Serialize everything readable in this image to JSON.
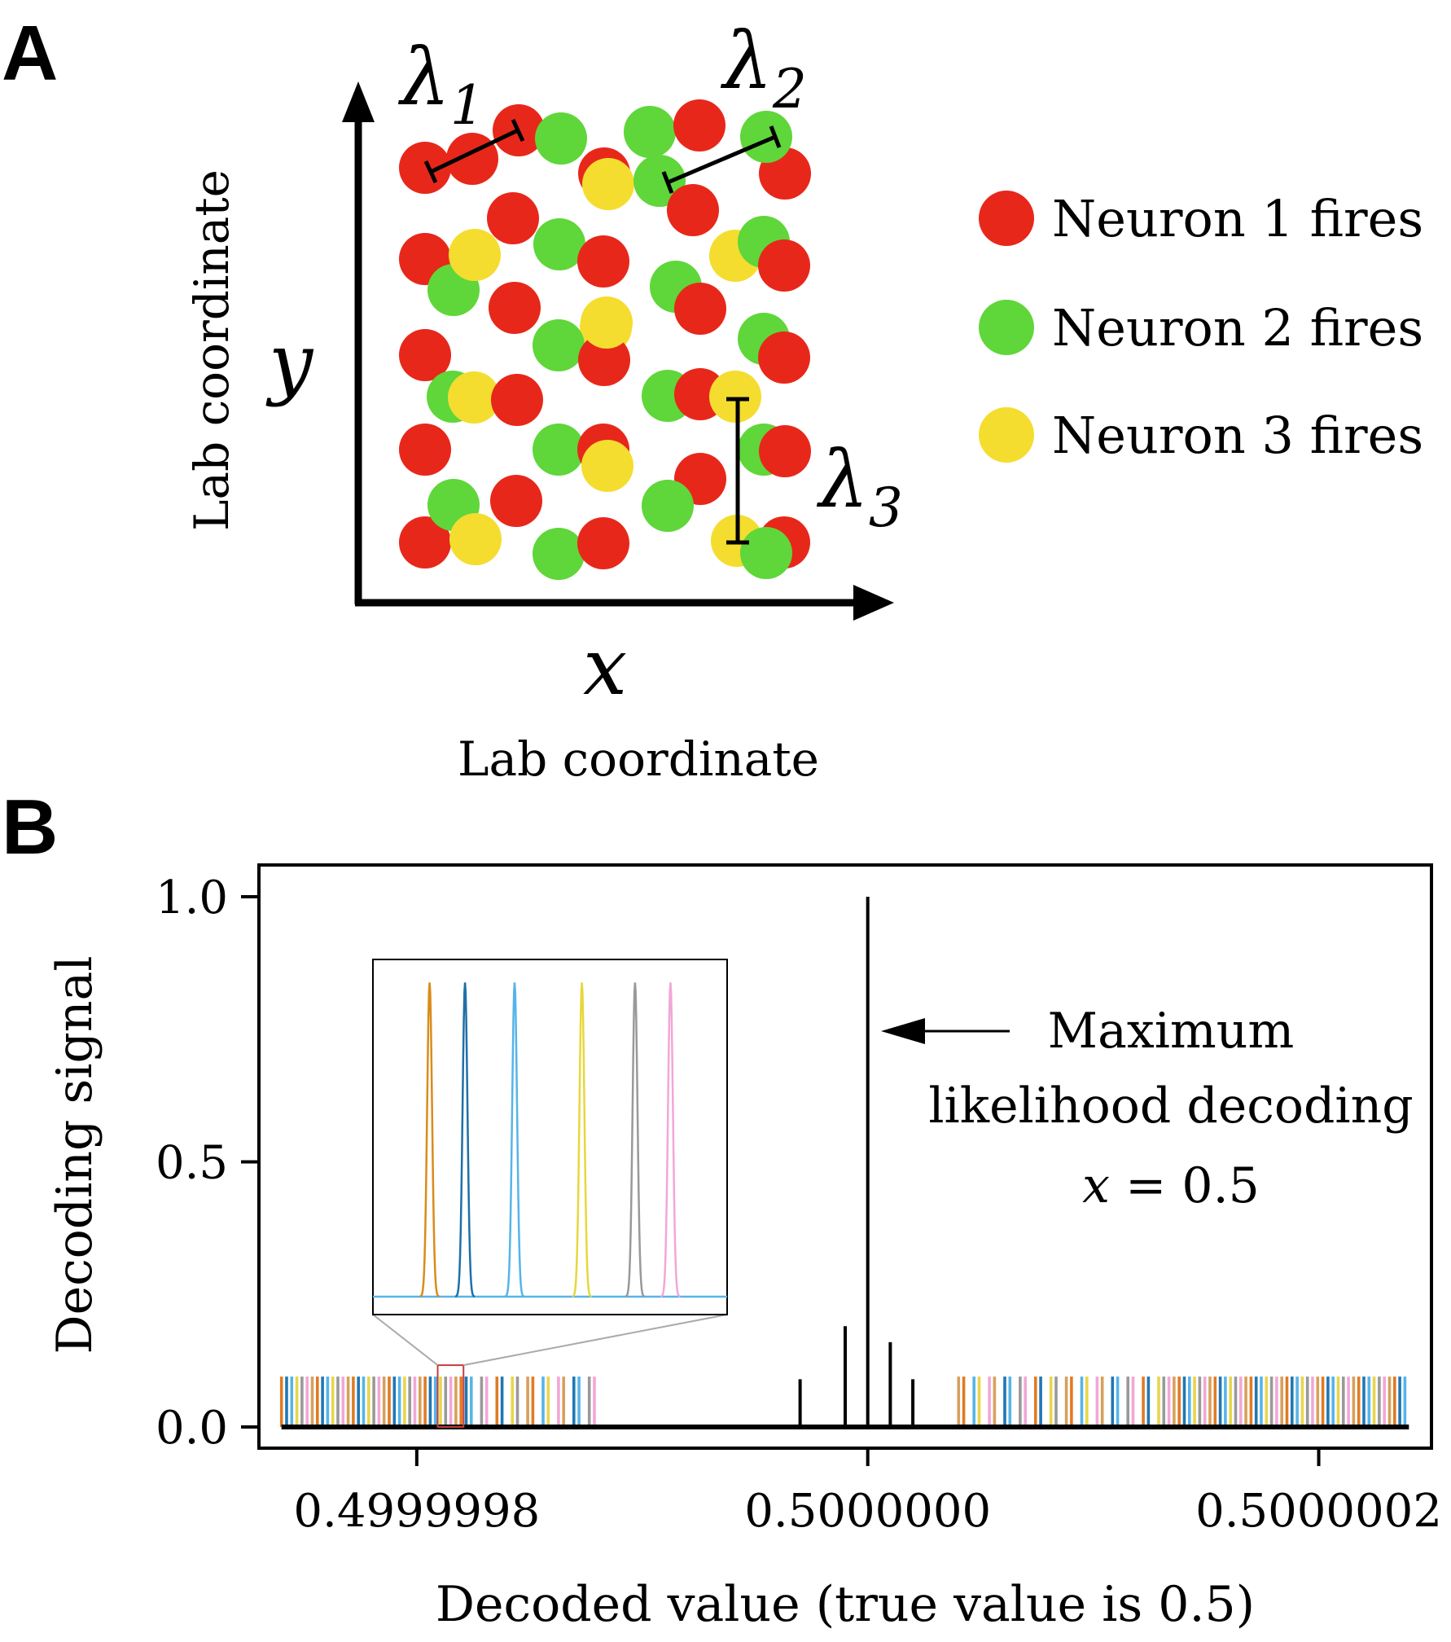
{
  "panel_a": {
    "label": "A",
    "x_axis_symbol": "x",
    "y_axis_symbol": "y",
    "x_axis_label": "Lab coordinate",
    "y_axis_label": "Lab coordinate",
    "lambda_symbol": "λ",
    "lambda_subscripts": [
      "1",
      "2",
      "3"
    ],
    "legend": [
      {
        "label": "Neuron 1 fires",
        "color": "#e8271b"
      },
      {
        "label": "Neuron 2 fires",
        "color": "#5fd63a"
      },
      {
        "label": "Neuron 3 fires",
        "color": "#f4dd2f"
      }
    ]
  },
  "panel_b": {
    "label": "B",
    "annotation_lines": [
      "Maximum",
      "likelihood decoding"
    ],
    "annotation_eq_var": "x",
    "annotation_eq_rest": " = 0.5"
  },
  "chart_data": {
    "type": "line",
    "xlabel": "Decoded value (true value is 0.5)",
    "ylabel": "Decoding signal",
    "xlim": [
      0.49999973,
      0.50000025
    ],
    "ylim": [
      -0.04,
      1.06
    ],
    "xticks": [
      0.4999998,
      0.5,
      0.5000002
    ],
    "xtick_labels": [
      "0.4999998",
      "0.5000000",
      "0.5000002"
    ],
    "yticks": [
      0.0,
      0.5,
      1.0
    ],
    "ytick_labels": [
      "0.0",
      "0.5",
      "1.0"
    ],
    "peak_comb": {
      "x_start": 0.49999974,
      "x_end": 0.50000024,
      "peak_height": 0.095,
      "colors": [
        "#e07b24",
        "#1f77b4",
        "#56b4e9",
        "#e8d64a",
        "#999999",
        "#f2a7d6",
        "#d6a05c"
      ],
      "gap_start": 0.49999988,
      "gap_end": 0.50000004
    },
    "central_peaks": [
      {
        "x": 0.49999997,
        "y": 0.09
      },
      {
        "x": 0.49999999,
        "y": 0.19
      },
      {
        "x": 0.5,
        "y": 1.0
      },
      {
        "x": 0.50000001,
        "y": 0.16
      },
      {
        "x": 0.50000002,
        "y": 0.09
      }
    ],
    "inset": {
      "peak_colors": [
        "#d98c1a",
        "#1f6fa8",
        "#56b4e9",
        "#e6d83b",
        "#999999",
        "#f2a7d6"
      ],
      "peak_positions": [
        0.16,
        0.26,
        0.4,
        0.59,
        0.74,
        0.84
      ],
      "peak_height": 0.95,
      "baseline_color": "#56b4e9",
      "zoom_region_x": [
        0.49999981,
        0.49999982
      ]
    }
  }
}
